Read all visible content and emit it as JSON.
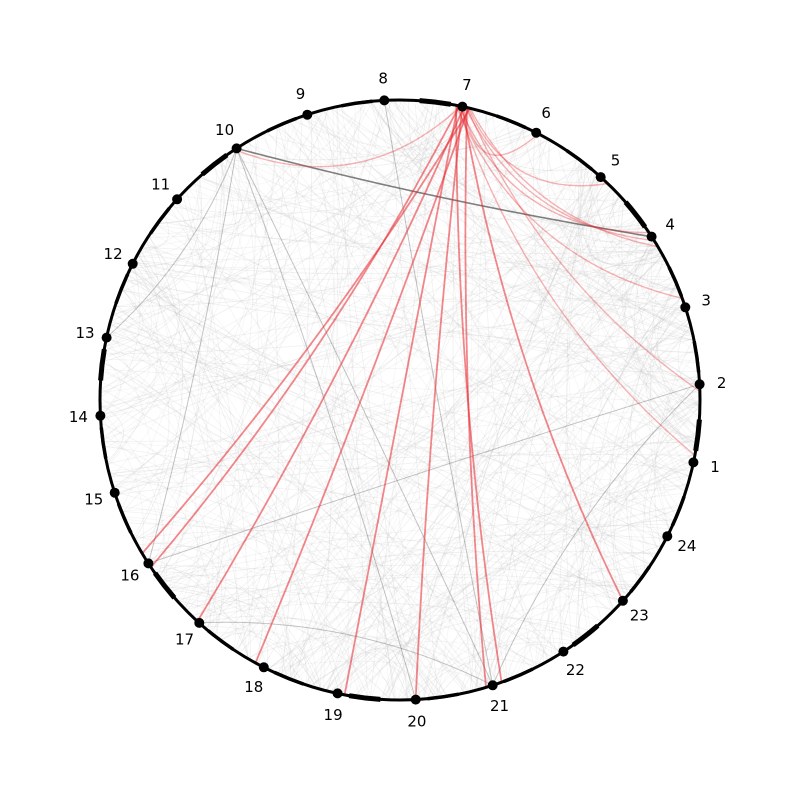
{
  "diagram": {
    "type": "chord",
    "nodes": [
      {
        "label": "1",
        "hour": 1
      },
      {
        "label": "2",
        "hour": 2
      },
      {
        "label": "3",
        "hour": 3
      },
      {
        "label": "4",
        "hour": 4
      },
      {
        "label": "5",
        "hour": 5
      },
      {
        "label": "6",
        "hour": 6
      },
      {
        "label": "7",
        "hour": 7
      },
      {
        "label": "8",
        "hour": 8
      },
      {
        "label": "9",
        "hour": 9
      },
      {
        "label": "10",
        "hour": 10
      },
      {
        "label": "11",
        "hour": 11
      },
      {
        "label": "12",
        "hour": 12
      },
      {
        "label": "13",
        "hour": 13
      },
      {
        "label": "14",
        "hour": 14
      },
      {
        "label": "15",
        "hour": 15
      },
      {
        "label": "16",
        "hour": 16
      },
      {
        "label": "17",
        "hour": 17
      },
      {
        "label": "18",
        "hour": 18
      },
      {
        "label": "19",
        "hour": 19
      },
      {
        "label": "20",
        "hour": 20
      },
      {
        "label": "21",
        "hour": 21
      },
      {
        "label": "22",
        "hour": 22
      },
      {
        "label": "23",
        "hour": 23
      },
      {
        "label": "24",
        "hour": 24
      }
    ],
    "highlight_color": "#e8252b",
    "dark_edge_color": "#555555",
    "background_edge_color": "#bbbbbb",
    "highlighted_edges": [
      [
        7,
        16
      ],
      [
        7,
        16
      ],
      [
        7,
        17
      ],
      [
        7,
        18
      ],
      [
        7,
        19
      ],
      [
        7,
        20
      ],
      [
        7,
        21
      ],
      [
        7,
        21
      ],
      [
        7,
        10
      ],
      [
        7,
        4
      ],
      [
        7,
        4
      ],
      [
        7,
        4
      ],
      [
        7,
        6
      ],
      [
        7,
        5
      ],
      [
        7,
        1
      ],
      [
        7,
        23
      ],
      [
        7,
        2
      ],
      [
        7,
        3
      ]
    ],
    "dark_edges": [
      [
        10,
        4
      ],
      [
        10,
        21
      ],
      [
        10,
        20
      ],
      [
        10,
        16
      ],
      [
        8,
        21
      ],
      [
        21,
        2
      ],
      [
        16,
        2
      ],
      [
        10,
        13
      ],
      [
        21,
        17
      ]
    ]
  }
}
